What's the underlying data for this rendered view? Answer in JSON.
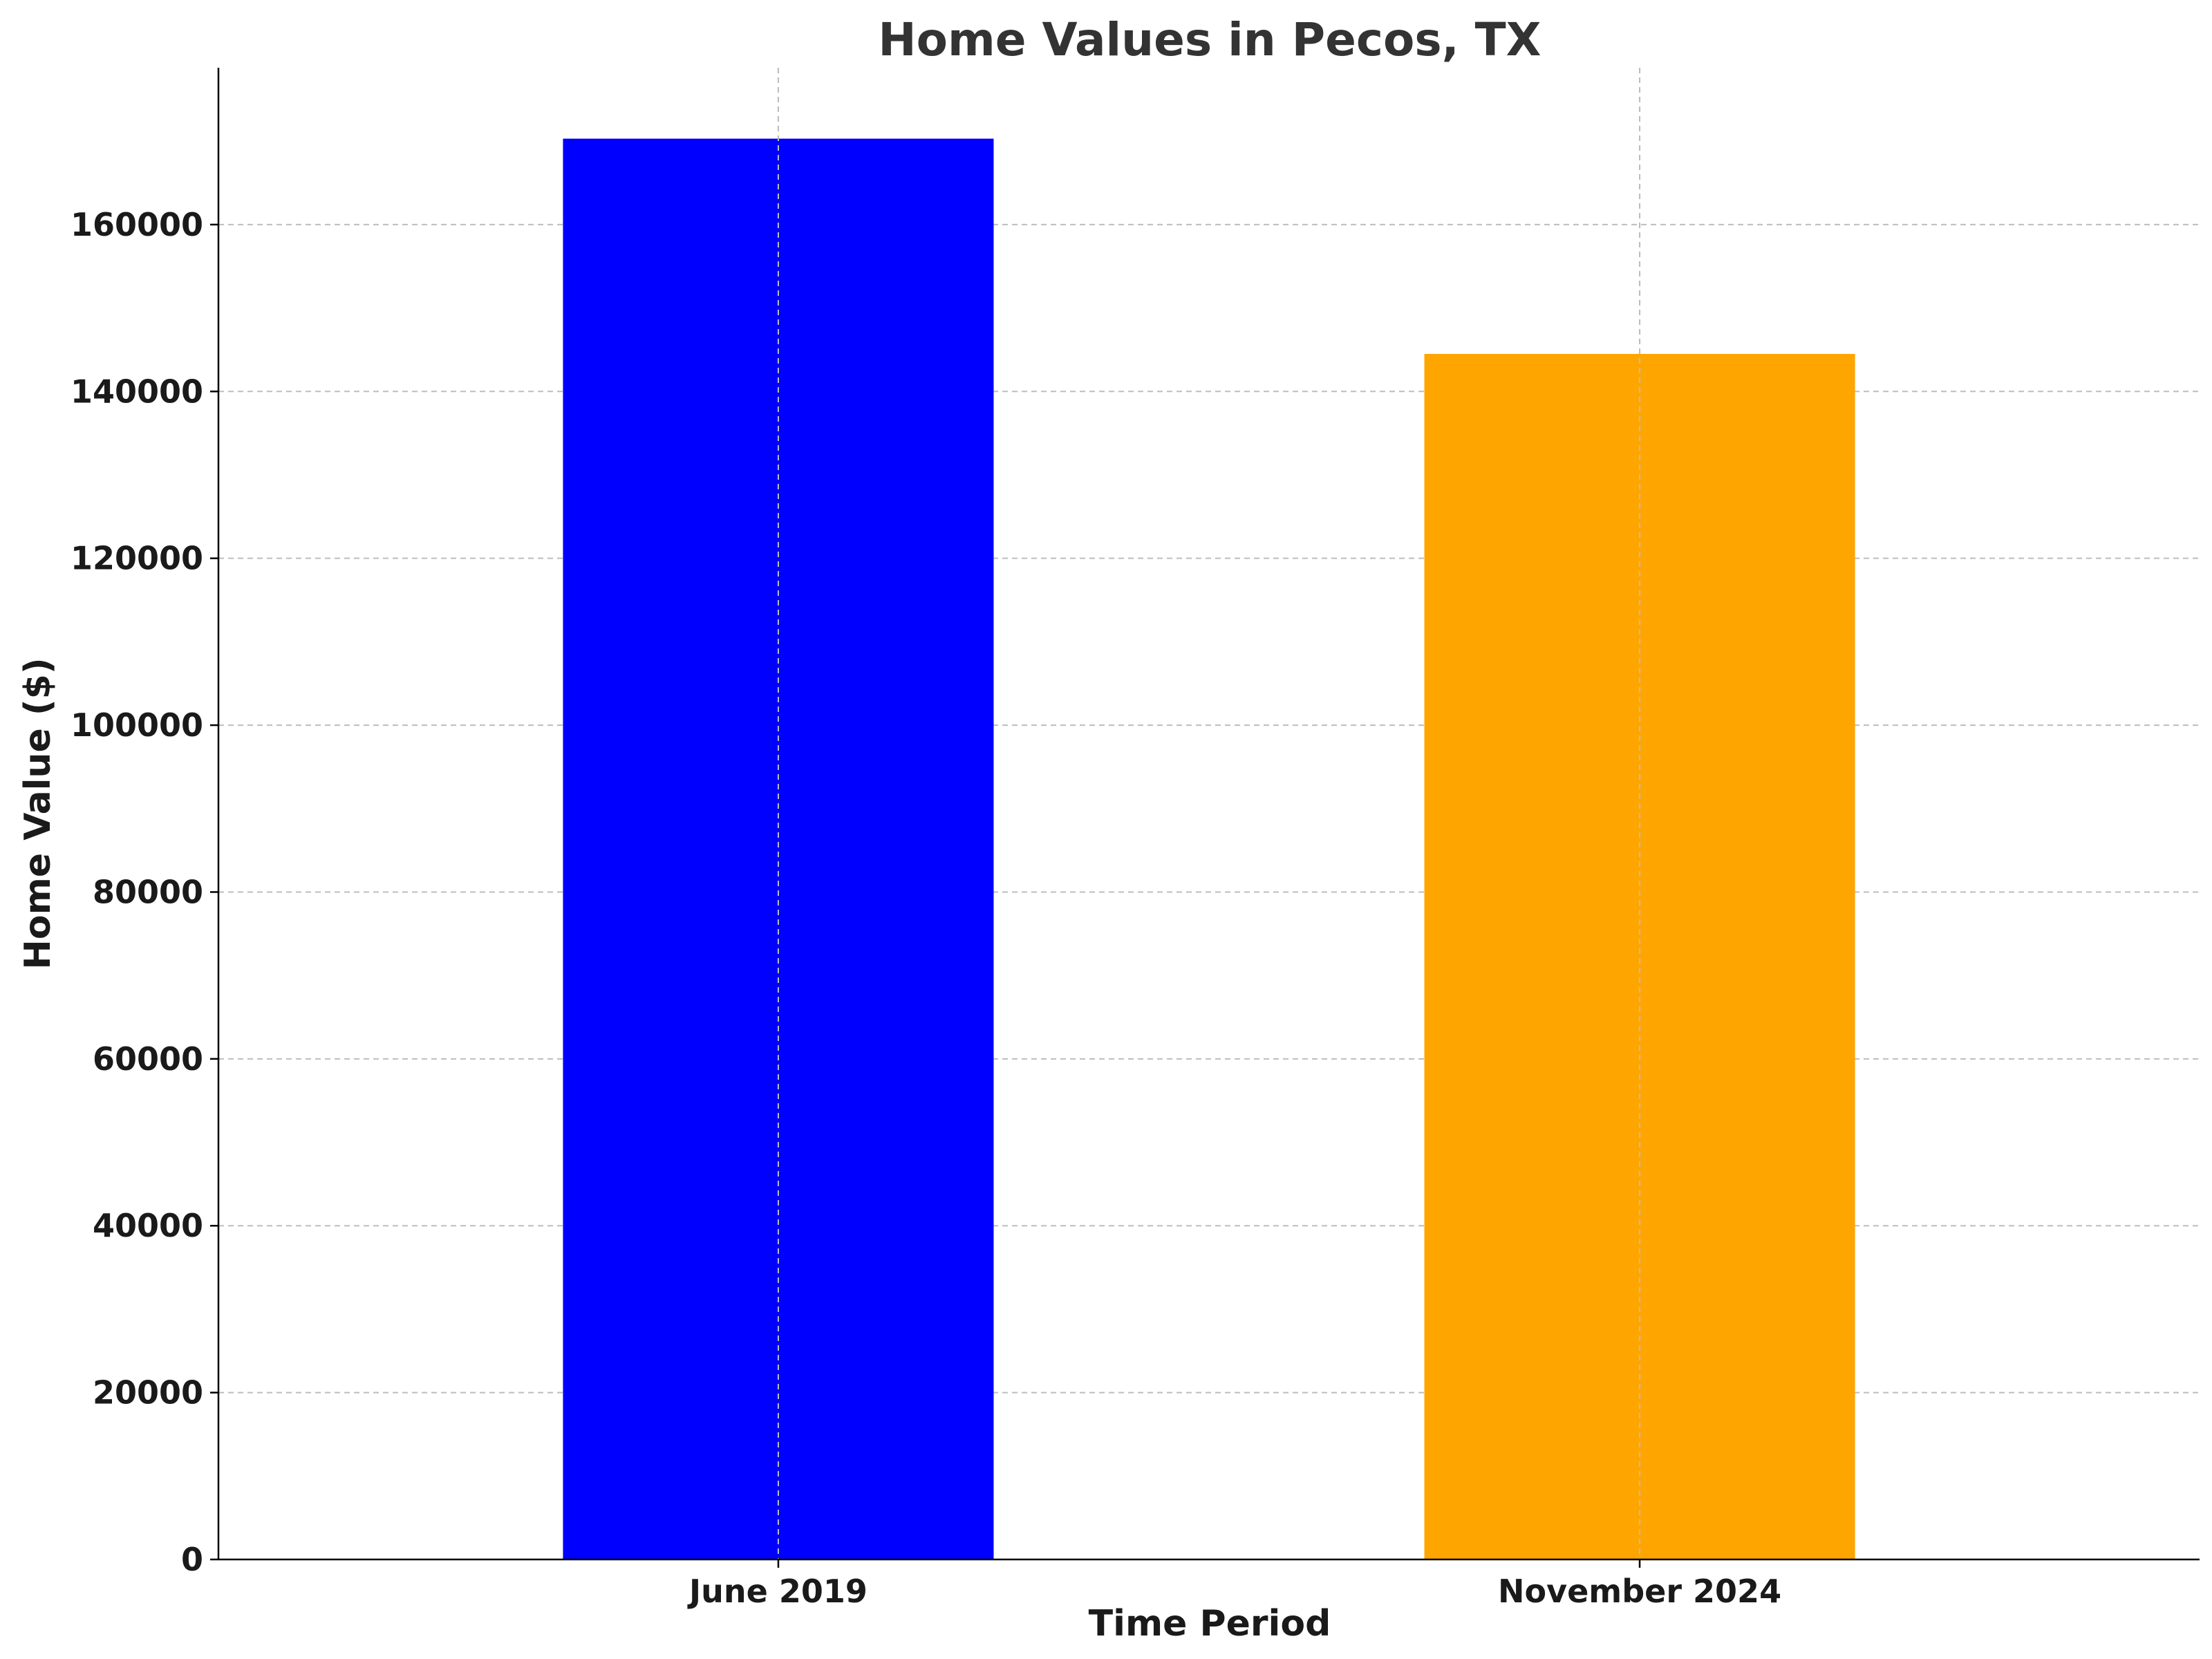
{
  "chart_data": {
    "type": "bar",
    "title": "Home Values in Pecos, TX",
    "xlabel": "Time Period",
    "ylabel": "Home Value ($)",
    "categories": [
      "June 2019",
      "November 2024"
    ],
    "values": [
      170300,
      144500
    ],
    "colors": [
      "#0000ff",
      "#ffa500"
    ],
    "ylim": [
      0,
      178800
    ],
    "yticks": [
      0,
      20000,
      40000,
      60000,
      80000,
      100000,
      120000,
      140000,
      160000
    ],
    "grid": true
  }
}
